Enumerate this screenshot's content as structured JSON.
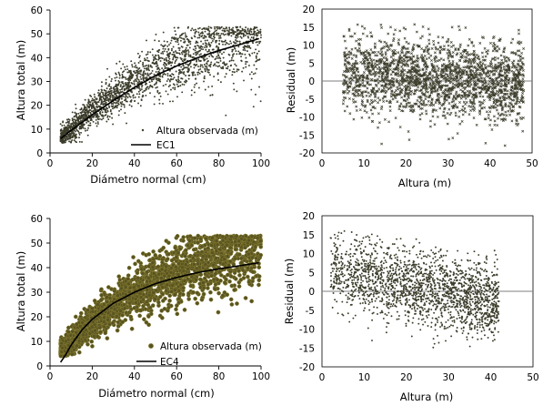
{
  "colors": {
    "observed_small": "#3d3d2c",
    "observed_large": "#5a5420",
    "observed_large_edge": "#8a8235",
    "fit_line": "#000000",
    "zero_line": "#7f7f7f",
    "axis": "#000000"
  },
  "chart_data": [
    {
      "id": "top-left",
      "type": "scatter",
      "xlabel": "Diámetro normal (cm)",
      "ylabel": "Altura total (m)",
      "xlim": [
        0,
        100
      ],
      "ylim": [
        0,
        60
      ],
      "xticks": [
        0,
        20,
        40,
        60,
        80,
        100
      ],
      "yticks": [
        0,
        10,
        20,
        30,
        40,
        50,
        60
      ],
      "legend": {
        "placement": "bottom-right",
        "entries": [
          "Altura observada (m)",
          "EC1"
        ]
      },
      "series": [
        {
          "name": "Altura observada (m)",
          "kind": "points",
          "marker": "small-dot",
          "n": 2200,
          "x_range": [
            5,
            100
          ],
          "y_range": [
            5,
            53
          ]
        },
        {
          "name": "EC1",
          "kind": "line",
          "x": [
            5,
            10,
            20,
            30,
            40,
            50,
            60,
            70,
            80,
            90,
            99
          ],
          "y": [
            6,
            9.5,
            16,
            22,
            27.5,
            32.5,
            36.5,
            40,
            43,
            45.5,
            48
          ]
        }
      ]
    },
    {
      "id": "top-right",
      "type": "scatter",
      "xlabel": "Altura (m)",
      "ylabel": "Residual (m)",
      "xlim": [
        0,
        50
      ],
      "ylim": [
        -20,
        20
      ],
      "xticks": [
        0,
        10,
        20,
        30,
        40,
        50
      ],
      "yticks": [
        -20,
        -15,
        -10,
        -5,
        0,
        5,
        10,
        15,
        20
      ],
      "reference_line": 0,
      "series": [
        {
          "name": "Residual",
          "kind": "points",
          "marker": "small-x",
          "n": 2200,
          "x_range": [
            5,
            48
          ],
          "y_range": [
            -18,
            16
          ]
        }
      ]
    },
    {
      "id": "bottom-left",
      "type": "scatter",
      "xlabel": "Diámetro normal (cm)",
      "ylabel": "Altura total (m)",
      "xlim": [
        0,
        100
      ],
      "ylim": [
        0,
        60
      ],
      "xticks": [
        0,
        20,
        40,
        60,
        80,
        100
      ],
      "yticks": [
        0,
        10,
        20,
        30,
        40,
        50,
        60
      ],
      "legend": {
        "placement": "bottom-right",
        "entries": [
          "Altura observada (m)",
          "EC4"
        ]
      },
      "series": [
        {
          "name": "Altura observada (m)",
          "kind": "points",
          "marker": "large-dot",
          "n": 2200,
          "x_range": [
            5,
            100
          ],
          "y_range": [
            5,
            53
          ]
        },
        {
          "name": "EC4",
          "kind": "line",
          "x": [
            5,
            7,
            10,
            15,
            20,
            30,
            40,
            50,
            60,
            70,
            80,
            90,
            99
          ],
          "y": [
            1.5,
            4,
            8.5,
            14.5,
            19,
            25.5,
            30,
            33.5,
            36,
            38,
            39.5,
            40.8,
            42
          ]
        }
      ]
    },
    {
      "id": "bottom-right",
      "type": "scatter",
      "xlabel": "Altura (m)",
      "ylabel": "Residual (m)",
      "xlim": [
        0,
        50
      ],
      "ylim": [
        -20,
        20
      ],
      "xticks": [
        0,
        10,
        20,
        30,
        40,
        50
      ],
      "yticks": [
        -20,
        -15,
        -10,
        -5,
        0,
        5,
        10,
        15,
        20
      ],
      "reference_line": 0,
      "series": [
        {
          "name": "Residual",
          "kind": "points",
          "marker": "small-dot",
          "n": 2000,
          "x_range": [
            2,
            42
          ],
          "y_range": [
            -17,
            16
          ]
        }
      ]
    }
  ]
}
